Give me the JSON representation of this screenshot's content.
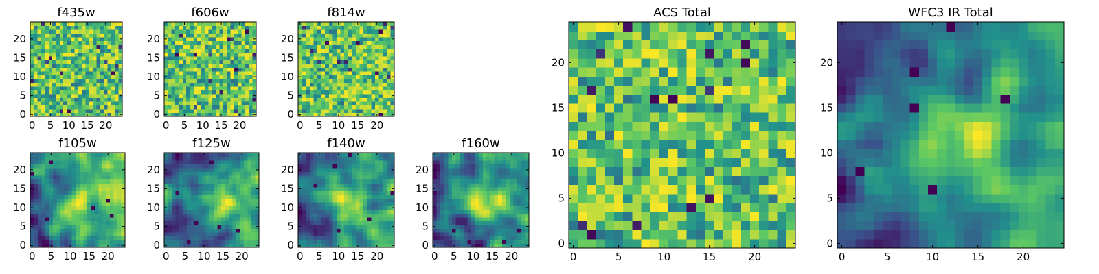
{
  "figure": {
    "colormap": [
      "#440154",
      "#3b528b",
      "#21918c",
      "#5ec962",
      "#fde725"
    ]
  },
  "chart_data": [
    {
      "type": "heatmap",
      "title": "f435w",
      "xlabel": "",
      "ylabel": "",
      "grid": false,
      "xlim": [
        -0.5,
        24.5
      ],
      "ylim": [
        -0.5,
        24.5
      ],
      "xticks": [
        0,
        5,
        10,
        15,
        20
      ],
      "yticks": [
        0,
        5,
        10,
        15,
        20
      ],
      "size": [
        25,
        25
      ],
      "pattern": "noise",
      "seed": 11
    },
    {
      "type": "heatmap",
      "title": "f606w",
      "xlabel": "",
      "ylabel": "",
      "grid": false,
      "xlim": [
        -0.5,
        24.5
      ],
      "ylim": [
        -0.5,
        24.5
      ],
      "xticks": [
        0,
        5,
        10,
        15,
        20
      ],
      "yticks": [
        0,
        5,
        10,
        15,
        20
      ],
      "size": [
        25,
        25
      ],
      "pattern": "noise",
      "seed": 23
    },
    {
      "type": "heatmap",
      "title": "f814w",
      "xlabel": "",
      "ylabel": "",
      "grid": false,
      "xlim": [
        -0.5,
        24.5
      ],
      "ylim": [
        -0.5,
        24.5
      ],
      "xticks": [
        0,
        5,
        10,
        15,
        20
      ],
      "yticks": [
        0,
        5,
        10,
        15,
        20
      ],
      "size": [
        25,
        25
      ],
      "pattern": "noise",
      "seed": 37
    },
    {
      "type": "heatmap",
      "title": "f105w",
      "xlabel": "",
      "ylabel": "",
      "grid": false,
      "xlim": [
        -0.5,
        24.5
      ],
      "ylim": [
        -0.5,
        24.5
      ],
      "xticks": [
        0,
        5,
        10,
        15,
        20
      ],
      "yticks": [
        0,
        5,
        10,
        15,
        20
      ],
      "size": [
        25,
        25
      ],
      "pattern": "smooth",
      "seed": 41
    },
    {
      "type": "heatmap",
      "title": "f125w",
      "xlabel": "",
      "ylabel": "",
      "grid": false,
      "xlim": [
        -0.5,
        24.5
      ],
      "ylim": [
        -0.5,
        24.5
      ],
      "xticks": [
        0,
        5,
        10,
        15,
        20
      ],
      "yticks": [
        0,
        5,
        10,
        15,
        20
      ],
      "size": [
        25,
        25
      ],
      "pattern": "smooth",
      "seed": 53
    },
    {
      "type": "heatmap",
      "title": "f140w",
      "xlabel": "",
      "ylabel": "",
      "grid": false,
      "xlim": [
        -0.5,
        24.5
      ],
      "ylim": [
        -0.5,
        24.5
      ],
      "xticks": [
        0,
        5,
        10,
        15,
        20
      ],
      "yticks": [
        0,
        5,
        10,
        15,
        20
      ],
      "size": [
        25,
        25
      ],
      "pattern": "smooth",
      "seed": 67
    },
    {
      "type": "heatmap",
      "title": "f160w",
      "xlabel": "",
      "ylabel": "",
      "grid": false,
      "xlim": [
        -0.5,
        24.5
      ],
      "ylim": [
        -0.5,
        24.5
      ],
      "xticks": [
        0,
        5,
        10,
        15,
        20
      ],
      "yticks": [
        0,
        5,
        10,
        15,
        20
      ],
      "size": [
        25,
        25
      ],
      "pattern": "smooth",
      "seed": 79
    },
    {
      "type": "heatmap",
      "title": "ACS Total",
      "xlabel": "",
      "ylabel": "",
      "grid": false,
      "xlim": [
        -0.5,
        24.5
      ],
      "ylim": [
        -0.5,
        24.5
      ],
      "xticks": [
        0,
        5,
        10,
        15,
        20
      ],
      "yticks": [
        0,
        5,
        10,
        15,
        20
      ],
      "size": [
        25,
        25
      ],
      "pattern": "noise",
      "seed": 97
    },
    {
      "type": "heatmap",
      "title": "WFC3 IR Total",
      "xlabel": "",
      "ylabel": "",
      "grid": false,
      "xlim": [
        -0.5,
        24.5
      ],
      "ylim": [
        -0.5,
        24.5
      ],
      "xticks": [
        0,
        5,
        10,
        15,
        20
      ],
      "yticks": [
        0,
        5,
        10,
        15,
        20
      ],
      "size": [
        25,
        25
      ],
      "pattern": "smooth",
      "seed": 101
    }
  ]
}
